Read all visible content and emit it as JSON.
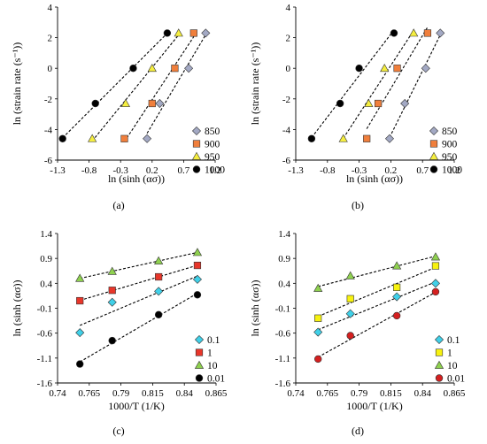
{
  "colors": {
    "850": "#a3a9c4",
    "900": "#f07f3c",
    "950": "#f5ee3f",
    "1000": "#000000",
    "0.1": "#40d0e8",
    "1": "#f7f20f",
    "10": "#8fd14f",
    "0.01": "#d42020",
    "1_c": "#e8362a",
    "0.01_c": "#000000"
  },
  "chart_data": [
    {
      "panel_label": "(a)",
      "type": "scatter",
      "xlabel": "ln (sinh (ασ))",
      "ylabel": "ln (strain rate (s⁻¹))",
      "xlim": [
        -1.3,
        1.2
      ],
      "ylim": [
        -6,
        4
      ],
      "xticks": [
        "-1.3",
        "-0.8",
        "-0.3",
        "0.2",
        "0.7",
        "1.2"
      ],
      "yticks": [
        "4",
        "2",
        "0",
        "-2",
        "-4",
        "-6"
      ],
      "legend_position": "right",
      "series": [
        {
          "name": "850",
          "marker": "diamond",
          "x": [
            0.12,
            0.32,
            0.78,
            1.05
          ],
          "y": [
            -4.6,
            -2.3,
            0.0,
            2.3
          ]
        },
        {
          "name": "900",
          "marker": "square",
          "x": [
            -0.24,
            0.2,
            0.56,
            0.86
          ],
          "y": [
            -4.6,
            -2.3,
            0.0,
            2.3
          ]
        },
        {
          "name": "950",
          "marker": "triangle",
          "x": [
            -0.75,
            -0.22,
            0.2,
            0.62
          ],
          "y": [
            -4.6,
            -2.3,
            0.0,
            2.3
          ]
        },
        {
          "name": "1000",
          "marker": "circle",
          "x": [
            -1.22,
            -0.7,
            -0.1,
            0.44
          ],
          "y": [
            -4.6,
            -2.3,
            0.0,
            2.3
          ]
        }
      ]
    },
    {
      "panel_label": "(b)",
      "type": "scatter",
      "xlabel": "ln (sinh (ασ))",
      "ylabel": "ln (strain rate (s⁻¹))",
      "xlim": [
        -1.3,
        1.2
      ],
      "ylim": [
        -6,
        4
      ],
      "xticks": [
        "-1.3",
        "-0.8",
        "-0.3",
        "0.2",
        "0.7",
        "1.2"
      ],
      "yticks": [
        "4",
        "2",
        "0",
        "-2",
        "-4",
        "-6"
      ],
      "legend_position": "right",
      "series": [
        {
          "name": "850",
          "marker": "diamond",
          "x": [
            0.18,
            0.42,
            0.75,
            0.98
          ],
          "y": [
            -4.6,
            -2.3,
            0.0,
            2.3
          ]
        },
        {
          "name": "900",
          "marker": "square",
          "x": [
            -0.18,
            0.0,
            0.3,
            0.78
          ],
          "y": [
            -4.6,
            -2.3,
            0.0,
            2.3
          ]
        },
        {
          "name": "950",
          "marker": "triangle",
          "x": [
            -0.55,
            -0.15,
            0.1,
            0.56
          ],
          "y": [
            -4.6,
            -2.3,
            0.0,
            2.3
          ]
        },
        {
          "name": "1000",
          "marker": "circle",
          "x": [
            -1.05,
            -0.6,
            -0.3,
            0.25
          ],
          "y": [
            -4.6,
            -2.3,
            0.0,
            2.3
          ]
        }
      ]
    },
    {
      "panel_label": "(c)",
      "type": "scatter",
      "xlabel": "1000/T (1/K)",
      "ylabel": "ln (sinh (ασ))",
      "xlim": [
        0.74,
        0.865
      ],
      "ylim": [
        -1.6,
        1.4
      ],
      "xticks": [
        "0.74",
        "0.765",
        "0.79",
        "0.815",
        "0.84",
        "0.865"
      ],
      "yticks": [
        "1.4",
        "0.9",
        "0.4",
        "-0.1",
        "-0.6",
        "-1.1",
        "-1.6"
      ],
      "legend_position": "right",
      "series": [
        {
          "name": "0.1",
          "marker": "diamond",
          "x": [
            0.7576,
            0.7831,
            0.8197,
            0.8503
          ],
          "y": [
            -0.59,
            0.02,
            0.24,
            0.48
          ]
        },
        {
          "name": "1",
          "marker": "square",
          "x": [
            0.7576,
            0.7831,
            0.8197,
            0.8503
          ],
          "y": [
            0.05,
            0.26,
            0.53,
            0.76
          ]
        },
        {
          "name": "10",
          "marker": "triangle",
          "x": [
            0.7576,
            0.7831,
            0.8197,
            0.8503
          ],
          "y": [
            0.5,
            0.64,
            0.85,
            1.02
          ]
        },
        {
          "name": "0.01",
          "marker": "circle",
          "x": [
            0.7576,
            0.7831,
            0.8197,
            0.8503
          ],
          "y": [
            -1.22,
            -0.75,
            -0.23,
            0.17
          ]
        }
      ]
    },
    {
      "panel_label": "(d)",
      "type": "scatter",
      "xlabel": "1000/T (1/K)",
      "ylabel": "ln (sinh (ασ))",
      "xlim": [
        0.74,
        0.865
      ],
      "ylim": [
        -1.6,
        1.4
      ],
      "xticks": [
        "0.74",
        "0.765",
        "0.79",
        "0.815",
        "0.84",
        "0.865"
      ],
      "yticks": [
        "1.4",
        "0.9",
        "0.4",
        "-0.1",
        "-0.6",
        "-1.1",
        "-1.6"
      ],
      "legend_position": "right",
      "series": [
        {
          "name": "0.1",
          "marker": "diamond",
          "x": [
            0.7576,
            0.7831,
            0.8197,
            0.8503
          ],
          "y": [
            -0.58,
            -0.21,
            0.13,
            0.4
          ]
        },
        {
          "name": "1",
          "marker": "square",
          "x": [
            0.7576,
            0.7831,
            0.8197,
            0.8503
          ],
          "y": [
            -0.3,
            0.09,
            0.32,
            0.75
          ]
        },
        {
          "name": "10",
          "marker": "triangle",
          "x": [
            0.7576,
            0.7831,
            0.8197,
            0.8503
          ],
          "y": [
            0.3,
            0.55,
            0.75,
            0.93
          ]
        },
        {
          "name": "0.01",
          "marker": "circle",
          "x": [
            0.7576,
            0.7831,
            0.8197,
            0.8503
          ],
          "y": [
            -1.12,
            -0.65,
            -0.25,
            0.23
          ]
        }
      ]
    }
  ]
}
